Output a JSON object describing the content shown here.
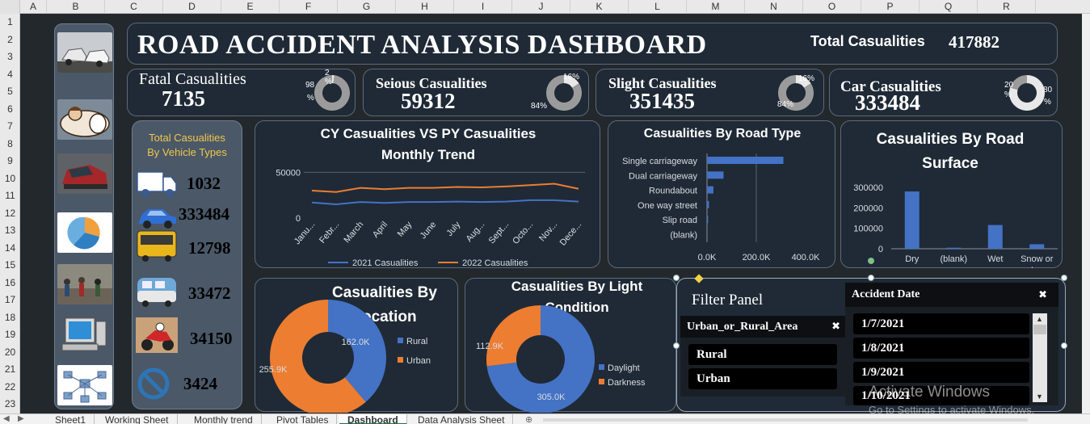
{
  "columns": [
    "A",
    "B",
    "C",
    "D",
    "E",
    "F",
    "G",
    "H",
    "I",
    "J",
    "K",
    "L",
    "M",
    "N",
    "O",
    "P",
    "Q",
    "R"
  ],
  "rows": [
    "1",
    "2",
    "3",
    "4",
    "5",
    "6",
    "7",
    "8",
    "9",
    "10",
    "11",
    "12",
    "13",
    "14",
    "15",
    "16",
    "17",
    "18",
    "19",
    "20",
    "21",
    "22",
    "23"
  ],
  "header": {
    "title": "ROAD ACCIDENT ANALYSIS DASHBOARD",
    "total_label": "Total Casualities",
    "total_value": "417882"
  },
  "kpis": [
    {
      "label": "Fatal Casualities",
      "value": "7135",
      "donut": {
        "pct_a": "98",
        "pct_b": "2",
        "sym": "%",
        "share": 0.02
      }
    },
    {
      "label": "Seious Casualities",
      "value": "59312",
      "donut": {
        "pct_top": "16%",
        "pct_bottom": "84%",
        "share": 0.16
      }
    },
    {
      "label": "Slight  Casualities",
      "value": "351435",
      "donut": {
        "pct_top": "16%",
        "pct_bottom": "84%",
        "share": 0.16
      }
    },
    {
      "label": "Car Casualities",
      "value": "333484",
      "donut": {
        "pct_a": "20",
        "pct_b": "80",
        "sym": "%",
        "share": 0.8
      }
    }
  ],
  "vehicle_types": {
    "title_line1": "Total Casualities",
    "title_line2": "By Vehicle Types",
    "items": [
      {
        "icon": "truck-icon",
        "value": "1032",
        "color": "#8eaadb"
      },
      {
        "icon": "car-icon",
        "value": "333484",
        "color": "#8eaadb"
      },
      {
        "icon": "bus-icon",
        "value": "12798",
        "color": "#8c7a2a"
      },
      {
        "icon": "van-icon",
        "value": "33472",
        "color": "#d9e0e8"
      },
      {
        "icon": "motorcycle-icon",
        "value": "34150",
        "color": "#c0282d"
      },
      {
        "icon": "no-entry-icon",
        "value": "3424",
        "color": "#2e75b6"
      }
    ]
  },
  "monthly_trend": {
    "title_line1": "CY Casualities  VS PY Casualities",
    "title_line2": "Monthly Trend",
    "legend_a": "2021 Casualities",
    "legend_b": "2022 Casualities",
    "tick_50000": "50000",
    "tick_0": "0"
  },
  "road_type": {
    "title": "Casualities By Road Type",
    "ticks": [
      "0.0K",
      "200.0K",
      "400.0K"
    ]
  },
  "road_surface": {
    "title_line1": "Casualities By Road",
    "title_line2": "Surface",
    "ticks": [
      "300000",
      "200000",
      "100000",
      "0"
    ]
  },
  "location": {
    "title_line1": "Casualities By",
    "title_line2": "Location",
    "label_a": "162.0K",
    "label_b": "255.9K"
  },
  "light": {
    "title_line1": "Casualities  By Light",
    "title_line2": "Condition",
    "label_a": "305.0K",
    "label_b": "112.9K"
  },
  "filter_panel": {
    "title": "Filter Panel",
    "area_header": "Urban_or_Rural_Area",
    "area_items": [
      "Rural",
      "Urban"
    ],
    "date_header": "Accident Date",
    "date_items": [
      "1/7/2021",
      "1/8/2021",
      "1/9/2021",
      "1/10/2021"
    ]
  },
  "watermark": {
    "line1": "Activate Windows",
    "line2": "Go to Settings to activate Windows."
  },
  "tabs": [
    "Sheet1",
    "Working Sheet",
    "Monthly trend",
    "Pivot Tables",
    "Dashboard",
    "Data Analysis Sheet"
  ],
  "active_tab": "Dashboard",
  "chart_data": [
    {
      "type": "line",
      "categories": [
        "Janu...",
        "Febr...",
        "March",
        "April",
        "May",
        "June",
        "July",
        "Aug...",
        "Sept...",
        "Octo...",
        "Nov...",
        "Dece..."
      ],
      "series": [
        {
          "name": "2021 Casualities",
          "color": "#4472c4",
          "values": [
            17000,
            15000,
            17500,
            16500,
            17500,
            17500,
            18000,
            17500,
            18000,
            19500,
            19500,
            18000
          ]
        },
        {
          "name": "2022 Casualities",
          "color": "#ed7d31",
          "values": [
            30000,
            28500,
            33000,
            31500,
            33000,
            33000,
            34000,
            33500,
            34500,
            36000,
            37500,
            32000
          ]
        }
      ],
      "ylim": [
        0,
        60000
      ]
    },
    {
      "type": "bar",
      "orientation": "horizontal",
      "categories": [
        "Single carriageway",
        "Dual carriageway",
        "Roundabout",
        "One way street",
        "Slip road",
        "(blank)"
      ],
      "values": [
        310000,
        67000,
        26000,
        8000,
        4500,
        0
      ],
      "xlim": [
        0,
        400000
      ],
      "color": "#4472c4"
    },
    {
      "type": "bar",
      "categories": [
        "Dry",
        "(blank)",
        "Wet",
        "Snow or Ice"
      ],
      "values": [
        280000,
        5000,
        116000,
        22000
      ],
      "ylim": [
        0,
        300000
      ],
      "color": "#4472c4"
    },
    {
      "type": "pie",
      "donut": true,
      "categories": [
        "Rural",
        "Urban"
      ],
      "values": [
        162000,
        255900
      ],
      "colors": [
        "#4472c4",
        "#ed7d31"
      ]
    },
    {
      "type": "pie",
      "donut": true,
      "categories": [
        "Daylight",
        "Darkness"
      ],
      "values": [
        305000,
        112900
      ],
      "colors": [
        "#4472c4",
        "#ed7d31"
      ]
    }
  ]
}
